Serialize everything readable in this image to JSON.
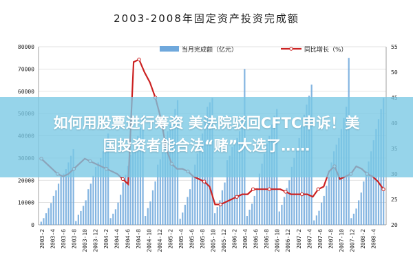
{
  "chart_data": {
    "type": "bar",
    "title": "2003-2008年固定资产投资完成额",
    "grid": true,
    "legend_position": "top",
    "series": [
      {
        "name": "当月完成额（亿元）",
        "type": "bar",
        "axis": "left",
        "color": "#6fa8dc",
        "values": [
          1400,
          3000,
          5200,
          7500,
          9800,
          13000,
          15500,
          18500,
          22000,
          23000,
          25000,
          28000,
          31000,
          34000,
          1700,
          4500,
          6200,
          8500,
          11000,
          16000,
          18500,
          22000,
          26000,
          28000,
          30000,
          33000,
          36500,
          41000,
          3000,
          5000,
          7000,
          10000,
          13500,
          19000,
          22500,
          26500,
          31500,
          33500,
          36000,
          40000,
          44000,
          49000,
          4000,
          7500,
          10500,
          15500,
          19500,
          27000,
          29500,
          35000,
          39000,
          42000,
          45000,
          48000,
          52000,
          56000,
          2700,
          5500,
          9000,
          12500,
          16000,
          22000,
          27000,
          32000,
          36000,
          41000,
          49000,
          53000,
          55000,
          57000,
          5200,
          8000,
          11000,
          15500,
          19000,
          29000,
          31000,
          35000,
          38500,
          39000,
          42000,
          47000,
          70000,
          4000,
          6800,
          9500,
          13000,
          16500,
          23000,
          27500,
          32000,
          36500,
          40000,
          45000,
          49000,
          52000,
          6000,
          9000,
          12500,
          16500,
          20000,
          26000,
          30000,
          34500,
          39000,
          44500,
          49500,
          54000,
          58000,
          63000,
          2000,
          4200,
          6300,
          10000,
          13000,
          17500,
          21500,
          28000,
          33000,
          36000,
          39000,
          43000,
          48000,
          53000,
          75000,
          3000,
          5000,
          7300,
          11000,
          14500,
          19500,
          24000,
          28500,
          33000,
          38000,
          43000,
          47500,
          52000,
          57000
        ],
        "note": "bar values are approximate readings"
      },
      {
        "name": "同比增长（%）",
        "type": "line",
        "axis": "right",
        "color": "#cc2222"
      }
    ],
    "line_values": [
      33,
      32,
      31,
      30,
      29.5,
      30,
      31,
      32,
      33,
      32.5,
      32,
      31.5,
      31,
      30.5,
      30,
      29,
      28,
      52,
      52.5,
      50,
      48,
      45,
      41,
      35,
      32,
      31,
      31,
      30.5,
      29.5,
      29,
      28.5,
      27.5,
      24,
      24,
      24.5,
      25,
      25.5,
      26,
      26,
      27,
      27,
      27,
      27,
      27,
      27,
      26.5,
      26,
      26,
      26,
      26,
      25.5,
      27,
      27.5,
      30.5,
      31.5,
      29,
      29.5,
      30,
      31.5,
      31,
      30,
      29.5,
      28.5,
      27
    ],
    "x_tick_labels": [
      "2003-2",
      "2003-4",
      "2003-6",
      "2003-8",
      "2003-10",
      "2003-12",
      "2004-2",
      "2004-4",
      "2004-6",
      "2004-8",
      "2004-10",
      "2004-12",
      "2005-2",
      "2005-4",
      "2005-6",
      "2005-8",
      "2005-10",
      "2005-12",
      "2006-2",
      "2006-4",
      "2006-6",
      "2006-8",
      "2006-10",
      "2006-12",
      "2007-2",
      "2007-4",
      "2007-6",
      "2007-8",
      "2007-10",
      "2007-12",
      "2008-2",
      "2008-4"
    ],
    "left_axis": {
      "ylim": [
        0,
        80000
      ],
      "ticks": [
        "0",
        "10000",
        "20000",
        "30000",
        "40000",
        "50000",
        "60000",
        "70000",
        "80000"
      ]
    },
    "right_axis": {
      "ylim": [
        20,
        55
      ],
      "ticks": [
        "20",
        "25",
        "30",
        "35",
        "40",
        "45",
        "50",
        "55"
      ]
    }
  },
  "overlay": {
    "line1": "如何用股票进行筹资 美法院驳回CFTC申诉！美",
    "line2": "国投资者能合法“赌”大选了……"
  }
}
